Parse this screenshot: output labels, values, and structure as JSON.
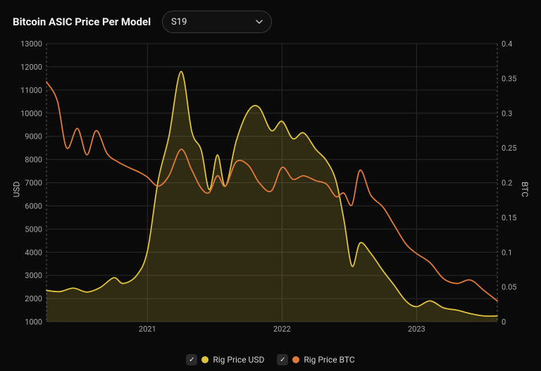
{
  "header": {
    "title": "Bitcoin ASIC Price Per Model",
    "dropdown_value": "S19"
  },
  "chart": {
    "type": "area-line-dual-axis",
    "background_color": "#0a0a0a",
    "grid_color": "#2b2b2b",
    "axis_color": "#555555",
    "axis_dash": "3 3",
    "tick_font_color": "#a8a8a8",
    "tick_fontsize": 11,
    "label_fontsize": 12,
    "y_left": {
      "label": "USD",
      "min": 1000,
      "max": 13000,
      "ticks": [
        1000,
        2000,
        3000,
        4000,
        5000,
        6000,
        7000,
        8000,
        9000,
        10000,
        11000,
        12000,
        13000
      ]
    },
    "y_right": {
      "label": "BTC",
      "min": 0,
      "max": 0.4,
      "ticks": [
        0,
        0.05,
        0.1,
        0.15,
        0.2,
        0.25,
        0.3,
        0.35,
        0.4
      ]
    },
    "x": {
      "min": 2020.25,
      "max": 2023.6,
      "tick_years": [
        2021,
        2022,
        2023
      ]
    },
    "series_usd": {
      "label": "Rig Price USD",
      "color": "#e0c23c",
      "fill_color": "rgba(224,194,60,0.18)",
      "line_width": 1.8,
      "points": [
        [
          2020.25,
          2350
        ],
        [
          2020.35,
          2300
        ],
        [
          2020.45,
          2450
        ],
        [
          2020.55,
          2280
        ],
        [
          2020.65,
          2480
        ],
        [
          2020.75,
          2900
        ],
        [
          2020.82,
          2650
        ],
        [
          2020.92,
          3000
        ],
        [
          2021.0,
          4050
        ],
        [
          2021.08,
          7100
        ],
        [
          2021.16,
          9000
        ],
        [
          2021.25,
          11800
        ],
        [
          2021.33,
          9200
        ],
        [
          2021.4,
          8400
        ],
        [
          2021.46,
          6700
        ],
        [
          2021.52,
          8200
        ],
        [
          2021.58,
          6850
        ],
        [
          2021.66,
          8800
        ],
        [
          2021.75,
          10100
        ],
        [
          2021.83,
          10250
        ],
        [
          2021.92,
          9250
        ],
        [
          2022.0,
          9650
        ],
        [
          2022.08,
          8900
        ],
        [
          2022.16,
          9150
        ],
        [
          2022.25,
          8450
        ],
        [
          2022.33,
          7950
        ],
        [
          2022.4,
          7100
        ],
        [
          2022.46,
          5400
        ],
        [
          2022.52,
          3400
        ],
        [
          2022.58,
          4400
        ],
        [
          2022.66,
          3950
        ],
        [
          2022.75,
          3200
        ],
        [
          2022.83,
          2600
        ],
        [
          2022.92,
          1900
        ],
        [
          2023.0,
          1650
        ],
        [
          2023.1,
          1900
        ],
        [
          2023.2,
          1600
        ],
        [
          2023.3,
          1500
        ],
        [
          2023.4,
          1350
        ],
        [
          2023.5,
          1250
        ],
        [
          2023.6,
          1250
        ]
      ]
    },
    "series_btc": {
      "label": "Rig Price BTC",
      "color": "#e07a3c",
      "fill_color": "none",
      "line_width": 1.8,
      "points": [
        [
          2020.25,
          0.345
        ],
        [
          2020.33,
          0.318
        ],
        [
          2020.4,
          0.25
        ],
        [
          2020.48,
          0.278
        ],
        [
          2020.55,
          0.24
        ],
        [
          2020.62,
          0.275
        ],
        [
          2020.7,
          0.242
        ],
        [
          2020.78,
          0.23
        ],
        [
          2020.86,
          0.222
        ],
        [
          2020.94,
          0.215
        ],
        [
          2021.0,
          0.208
        ],
        [
          2021.08,
          0.195
        ],
        [
          2021.16,
          0.21
        ],
        [
          2021.25,
          0.248
        ],
        [
          2021.33,
          0.218
        ],
        [
          2021.4,
          0.192
        ],
        [
          2021.46,
          0.186
        ],
        [
          2021.52,
          0.21
        ],
        [
          2021.58,
          0.195
        ],
        [
          2021.66,
          0.23
        ],
        [
          2021.75,
          0.225
        ],
        [
          2021.83,
          0.2
        ],
        [
          2021.92,
          0.188
        ],
        [
          2022.0,
          0.222
        ],
        [
          2022.08,
          0.205
        ],
        [
          2022.16,
          0.21
        ],
        [
          2022.25,
          0.203
        ],
        [
          2022.33,
          0.198
        ],
        [
          2022.4,
          0.18
        ],
        [
          2022.46,
          0.185
        ],
        [
          2022.52,
          0.168
        ],
        [
          2022.58,
          0.218
        ],
        [
          2022.66,
          0.182
        ],
        [
          2022.75,
          0.165
        ],
        [
          2022.83,
          0.14
        ],
        [
          2022.92,
          0.112
        ],
        [
          2023.0,
          0.098
        ],
        [
          2023.1,
          0.085
        ],
        [
          2023.2,
          0.062
        ],
        [
          2023.3,
          0.055
        ],
        [
          2023.4,
          0.06
        ],
        [
          2023.5,
          0.045
        ],
        [
          2023.6,
          0.03
        ]
      ]
    }
  },
  "legend": {
    "items": [
      {
        "label": "Rig Price USD",
        "color": "#e0c23c",
        "checked": true
      },
      {
        "label": "Rig Price BTC",
        "color": "#e07a3c",
        "checked": true
      }
    ]
  }
}
